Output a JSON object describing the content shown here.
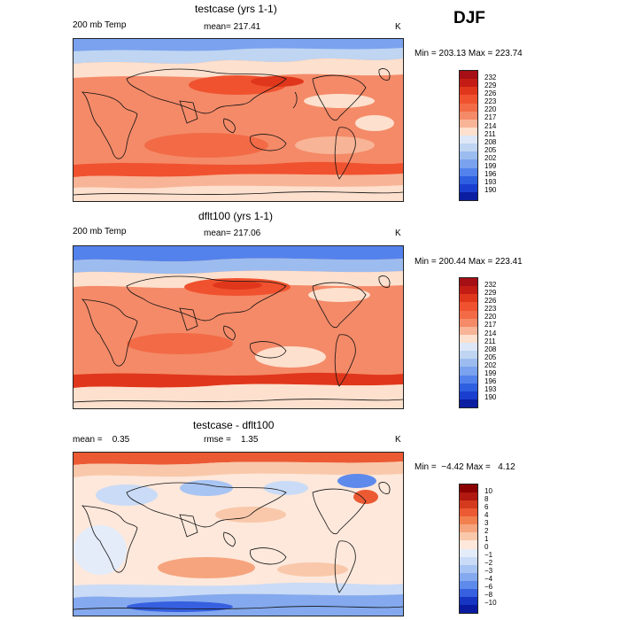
{
  "season": "DJF",
  "panels": [
    {
      "title": "testcase (yrs 1-1)",
      "left_label": "200 mb Temp",
      "center_label": "mean= 217.41",
      "right_label": "K",
      "stats": "Min = 203.13 Max = 223.74",
      "colorbar": {
        "levels": [
          "232",
          "229",
          "226",
          "223",
          "220",
          "217",
          "214",
          "211",
          "208",
          "205",
          "202",
          "199",
          "196",
          "193",
          "190"
        ]
      }
    },
    {
      "title": "dflt100 (yrs 1-1)",
      "left_label": "200 mb Temp",
      "center_label": "mean= 217.06",
      "right_label": "K",
      "stats": "Min = 200.44 Max = 223.41",
      "colorbar": {
        "levels": [
          "232",
          "229",
          "226",
          "223",
          "220",
          "217",
          "214",
          "211",
          "208",
          "205",
          "202",
          "199",
          "196",
          "193",
          "190"
        ]
      }
    },
    {
      "title": "testcase - dflt100",
      "left_label": "mean =    0.35",
      "center_label": "rmse =    1.35",
      "right_label": "K",
      "stats": "Min =  −4.42 Max =   4.12",
      "colorbar": {
        "levels": [
          "10",
          "8",
          "6",
          "4",
          "3",
          "2",
          "1",
          "0",
          "−1",
          "−2",
          "−3",
          "−4",
          "−6",
          "−8",
          "−10"
        ]
      }
    }
  ],
  "colors": {
    "temp_scale": [
      "#a50f15",
      "#c21c14",
      "#e0371c",
      "#f0522f",
      "#f26b46",
      "#f48a68",
      "#f8b497",
      "#fde0cd",
      "#dde7f7",
      "#bfd5f2",
      "#9cbcf0",
      "#7aa2ee",
      "#5382ec",
      "#2d5fe0",
      "#1a3fd0",
      "#0b1da0"
    ],
    "diff_scale": [
      "#8b0000",
      "#b01810",
      "#d43a1d",
      "#eb5a33",
      "#f2804f",
      "#f6a47d",
      "#f9c8aa",
      "#fde8db",
      "#e4ecfa",
      "#c9dbf6",
      "#a8c4f2",
      "#84a9ee",
      "#5e8aeb",
      "#3660e0",
      "#1535c2",
      "#0a1aa0"
    ]
  },
  "chart_data": [
    {
      "type": "heatmap",
      "title": "testcase (yrs 1-1)",
      "variable": "200 mb Temp",
      "units": "K",
      "mean": 217.41,
      "min": 203.13,
      "max": 223.74,
      "contour_levels": [
        190,
        193,
        196,
        199,
        202,
        205,
        208,
        211,
        214,
        217,
        220,
        223,
        226,
        229,
        232
      ]
    },
    {
      "type": "heatmap",
      "title": "dflt100 (yrs 1-1)",
      "variable": "200 mb Temp",
      "units": "K",
      "mean": 217.06,
      "min": 200.44,
      "max": 223.41,
      "contour_levels": [
        190,
        193,
        196,
        199,
        202,
        205,
        208,
        211,
        214,
        217,
        220,
        223,
        226,
        229,
        232
      ]
    },
    {
      "type": "heatmap",
      "title": "testcase - dflt100",
      "units": "K",
      "mean": 0.35,
      "rmse": 1.35,
      "min": -4.42,
      "max": 4.12,
      "contour_levels": [
        -10,
        -8,
        -6,
        -4,
        -3,
        -2,
        -1,
        0,
        1,
        2,
        3,
        4,
        6,
        8,
        10
      ]
    }
  ]
}
